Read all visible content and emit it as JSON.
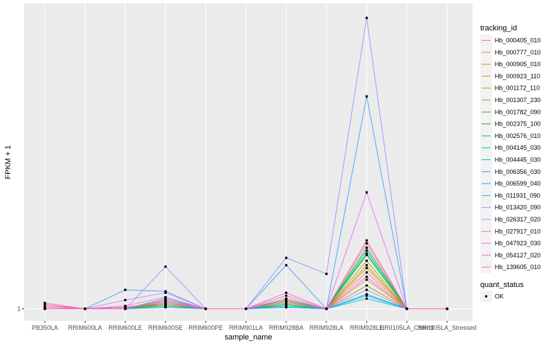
{
  "chart_data": {
    "type": "line",
    "xlabel": "sample_name",
    "ylabel": "FPKM + 1",
    "y_tick_labels": [
      "1"
    ],
    "ylim": [
      0.85,
      21.5
    ],
    "grid": true,
    "legend_position": "right",
    "categories": [
      "PB350LA",
      "RRIM600LA",
      "RRIM600LE",
      "RRIM600SE",
      "RRIM600PE",
      "RRIM901LA",
      "RRIM928BA",
      "RRIM928LA",
      "RRIM928LE",
      "RRII105LA_Control",
      "RRII105LA_Stressed"
    ],
    "legend_title": "tracking_id",
    "series": [
      {
        "name": "Hb_000405_010",
        "color": "#F8766D",
        "values": [
          1.1,
          1.0,
          1.1,
          1.3,
          1.0,
          1.0,
          1.5,
          1.0,
          3.5,
          1.0,
          1.0
        ]
      },
      {
        "name": "Hb_000777_010",
        "color": "#F07F3F",
        "values": [
          1.0,
          1.0,
          1.1,
          1.4,
          1.0,
          1.0,
          1.4,
          1.0,
          3.0,
          1.0,
          1.0
        ]
      },
      {
        "name": "Hb_000905_010",
        "color": "#E18A00",
        "values": [
          1.0,
          1.0,
          1.1,
          1.2,
          1.0,
          1.0,
          1.3,
          1.0,
          3.8,
          1.0,
          1.0
        ]
      },
      {
        "name": "Hb_000923_110",
        "color": "#C99800",
        "values": [
          1.0,
          1.0,
          1.0,
          1.3,
          1.0,
          1.0,
          1.4,
          1.0,
          4.0,
          1.0,
          1.0
        ]
      },
      {
        "name": "Hb_001172_110",
        "color": "#A9A300",
        "values": [
          1.0,
          1.0,
          1.1,
          1.3,
          1.0,
          1.0,
          1.3,
          1.0,
          4.3,
          1.0,
          1.0
        ]
      },
      {
        "name": "Hb_001307_230",
        "color": "#7FAD00",
        "values": [
          1.0,
          1.0,
          1.0,
          1.2,
          1.0,
          1.0,
          1.2,
          1.0,
          2.6,
          1.0,
          1.0
        ]
      },
      {
        "name": "Hb_001782_090",
        "color": "#3AB400",
        "values": [
          1.0,
          1.0,
          1.1,
          1.5,
          1.0,
          1.0,
          1.5,
          1.0,
          5.0,
          1.0,
          1.0
        ]
      },
      {
        "name": "Hb_002375_100",
        "color": "#00B93D",
        "values": [
          1.0,
          1.0,
          1.0,
          1.4,
          1.0,
          1.0,
          1.6,
          1.0,
          4.7,
          1.0,
          1.0
        ]
      },
      {
        "name": "Hb_002576_010",
        "color": "#00BD7C",
        "values": [
          1.0,
          1.0,
          1.0,
          1.7,
          1.0,
          1.0,
          1.3,
          1.0,
          5.2,
          1.0,
          1.0
        ]
      },
      {
        "name": "Hb_004145_030",
        "color": "#00C0A6",
        "values": [
          1.0,
          1.0,
          1.0,
          1.6,
          1.0,
          1.0,
          1.2,
          1.0,
          4.8,
          1.0,
          1.0
        ]
      },
      {
        "name": "Hb_004445_030",
        "color": "#00BFC4",
        "values": [
          1.0,
          1.0,
          1.0,
          1.2,
          1.0,
          1.0,
          1.1,
          1.0,
          2.0,
          1.0,
          1.0
        ]
      },
      {
        "name": "Hb_006356_030",
        "color": "#00B7E0",
        "values": [
          1.0,
          1.0,
          1.0,
          1.2,
          1.0,
          1.0,
          1.2,
          1.0,
          1.7,
          1.0,
          1.0
        ]
      },
      {
        "name": "Hb_006599_040",
        "color": "#00ABF6",
        "values": [
          1.0,
          1.0,
          1.0,
          1.1,
          1.0,
          1.0,
          1.1,
          1.0,
          1.9,
          1.0,
          1.0
        ]
      },
      {
        "name": "Hb_011931_090",
        "color": "#3D9EFF",
        "values": [
          1.0,
          1.0,
          2.3,
          2.2,
          1.0,
          1.0,
          4.0,
          1.0,
          15.6,
          1.0,
          1.0
        ]
      },
      {
        "name": "Hb_013420_090",
        "color": "#9590FF",
        "values": [
          1.0,
          1.0,
          1.0,
          3.9,
          1.0,
          1.0,
          4.5,
          3.4,
          21.0,
          1.0,
          1.0
        ]
      },
      {
        "name": "Hb_026317_020",
        "color": "#C77CFF",
        "values": [
          1.0,
          1.0,
          1.6,
          2.1,
          1.0,
          1.0,
          1.7,
          1.0,
          2.3,
          1.0,
          1.0
        ]
      },
      {
        "name": "Hb_027917_010",
        "color": "#E76BF3",
        "values": [
          1.0,
          1.0,
          1.0,
          1.6,
          1.0,
          1.0,
          1.5,
          1.0,
          9.0,
          1.0,
          1.0
        ]
      },
      {
        "name": "Hb_047923_030",
        "color": "#F962DD",
        "values": [
          1.4,
          1.0,
          1.2,
          1.8,
          1.0,
          1.0,
          2.1,
          1.0,
          3.2,
          1.0,
          1.0
        ]
      },
      {
        "name": "Hb_054127_020",
        "color": "#FF62BC",
        "values": [
          1.2,
          1.0,
          1.1,
          1.5,
          1.0,
          1.0,
          1.9,
          1.0,
          5.5,
          1.0,
          1.0
        ]
      },
      {
        "name": "Hb_139605_010",
        "color": "#FF6C91",
        "values": [
          1.3,
          1.0,
          1.1,
          1.4,
          1.0,
          1.0,
          1.7,
          1.0,
          5.7,
          1.0,
          1.0
        ]
      }
    ],
    "quant_status": {
      "title": "quant_status",
      "items": [
        "OK"
      ]
    }
  }
}
